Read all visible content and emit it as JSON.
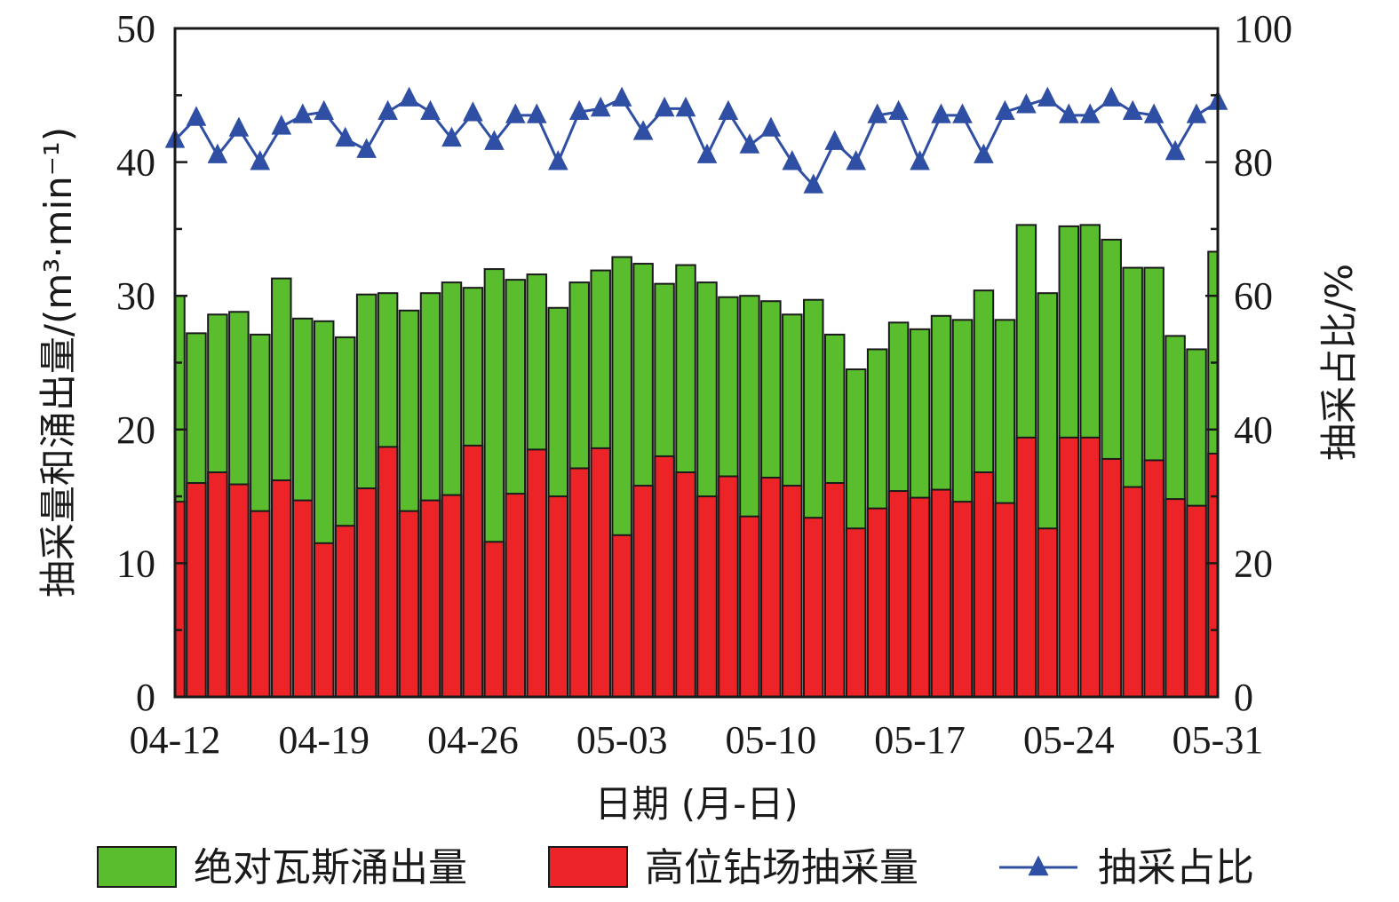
{
  "chart_data": {
    "type": "bar",
    "stacking": "overlay",
    "x_tick_labels": [
      "04-12",
      "04-19",
      "04-26",
      "05-03",
      "05-10",
      "05-17",
      "05-24",
      "05-31"
    ],
    "categories": [
      "04-12",
      "04-13",
      "04-14",
      "04-15",
      "04-16",
      "04-17",
      "04-18",
      "04-19",
      "04-20",
      "04-21",
      "04-22",
      "04-23",
      "04-24",
      "04-25",
      "04-26",
      "04-27",
      "04-28",
      "04-29",
      "04-30",
      "05-01",
      "05-02",
      "05-03",
      "05-04",
      "05-05",
      "05-06",
      "05-07",
      "05-08",
      "05-09",
      "05-10",
      "05-11",
      "05-12",
      "05-13",
      "05-14",
      "05-15",
      "05-16",
      "05-17",
      "05-18",
      "05-19",
      "05-20",
      "05-21",
      "05-22",
      "05-23",
      "05-24",
      "05-25",
      "05-26",
      "05-27",
      "05-28",
      "05-29",
      "05-30",
      "05-31"
    ],
    "series": [
      {
        "name": "绝对瓦斯涌出量",
        "axis": "left",
        "kind": "bar",
        "color": "#5abd2e",
        "values": [
          30.0,
          27.2,
          28.6,
          28.8,
          27.1,
          31.3,
          28.3,
          28.1,
          26.9,
          30.1,
          30.2,
          28.9,
          30.2,
          31.0,
          30.6,
          32.0,
          31.2,
          31.6,
          29.1,
          31.0,
          31.9,
          32.9,
          32.4,
          30.9,
          32.3,
          31.0,
          29.9,
          30.0,
          29.6,
          28.6,
          29.7,
          27.1,
          24.5,
          26.0,
          28.0,
          27.5,
          28.5,
          28.2,
          30.4,
          28.2,
          35.3,
          30.2,
          35.2,
          35.3,
          34.2,
          32.1,
          32.1,
          27.0,
          26.0,
          33.3
        ]
      },
      {
        "name": "高位钻场抽采量",
        "axis": "left",
        "kind": "bar",
        "color": "#ec2327",
        "values": [
          14.6,
          16.0,
          16.8,
          15.9,
          13.9,
          16.2,
          14.7,
          11.5,
          12.8,
          15.6,
          18.7,
          13.9,
          14.7,
          15.1,
          18.8,
          11.6,
          15.2,
          18.5,
          15.0,
          17.1,
          18.6,
          12.1,
          15.8,
          18.0,
          16.8,
          15.0,
          16.5,
          13.5,
          16.4,
          15.8,
          13.4,
          16.0,
          12.6,
          14.1,
          15.4,
          14.9,
          15.5,
          14.6,
          16.8,
          14.5,
          19.4,
          12.6,
          19.4,
          19.4,
          17.8,
          15.7,
          17.7,
          14.8,
          14.3,
          18.2
        ]
      },
      {
        "name": "抽采占比",
        "axis": "right",
        "kind": "line",
        "color": "#2f4fa4",
        "values": [
          83.3,
          86.6,
          81.0,
          85.0,
          80.0,
          85.3,
          87.0,
          87.5,
          83.5,
          81.8,
          87.5,
          89.5,
          87.5,
          83.5,
          87.3,
          83.0,
          87.0,
          87.0,
          80.0,
          87.5,
          88.0,
          89.5,
          84.5,
          88.0,
          88.0,
          81.0,
          87.5,
          82.5,
          85.0,
          80.0,
          76.5,
          83.0,
          80.0,
          87.0,
          87.5,
          80.0,
          87.0,
          87.0,
          81.0,
          87.5,
          88.5,
          89.5,
          87.0,
          87.0,
          89.5,
          87.5,
          87.0,
          81.5,
          87.0,
          89.0
        ]
      }
    ],
    "ylabel": "抽采量和涌出量/(m³·min⁻¹)",
    "ylabel2": "抽采占比/%",
    "xlabel": "日期 (月-日)",
    "ylim": [
      0,
      50
    ],
    "ylim2": [
      0,
      100
    ],
    "yticks": [
      0,
      10,
      20,
      30,
      40,
      50
    ],
    "yticks2": [
      0,
      20,
      40,
      60,
      80,
      100
    ],
    "grid": false,
    "legend_position": "bottom"
  }
}
